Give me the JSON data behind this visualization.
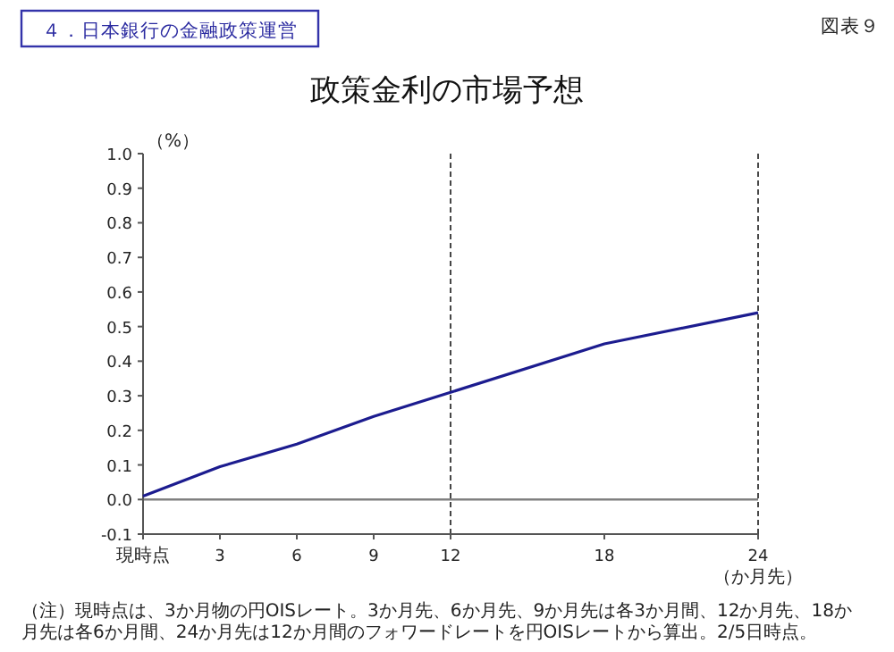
{
  "chart_data": {
    "type": "line",
    "title": "政策金利の市場予想",
    "xlabel": "（か月先）",
    "ylabel": "（%）",
    "annotations": [
      "４．日本銀行の金融政策運営",
      "図表９",
      "（注）現時点は、3か月物の円OISレート。3か月先、6か月先、9か月先は各3か月間、12か月先、18か月先は各6か月間、24か月先は12か月間のフォワードレートを円OISレートから算出。2/5日時点。"
    ],
    "x": [
      0,
      3,
      6,
      9,
      12,
      18,
      24
    ],
    "series": [
      {
        "color": "#1c1c8f",
        "values": [
          0.01,
          0.095,
          0.16,
          0.24,
          0.31,
          0.45,
          0.54
        ]
      }
    ],
    "xlim": [
      0,
      24
    ],
    "xticks": [
      {
        "value": 0,
        "label": "現時点"
      },
      3,
      6,
      9,
      12,
      18,
      24
    ],
    "ylim": [
      -0.1,
      1.0
    ],
    "yticks": [
      {
        "value": -0.1,
        "label": "-0.1"
      },
      {
        "value": 0,
        "label": "0.0"
      },
      {
        "value": 0.1,
        "label": "0.1"
      },
      {
        "value": 0.2,
        "label": "0.2"
      },
      {
        "value": 0.3,
        "label": "0.3"
      },
      {
        "value": 0.4,
        "label": "0.4"
      },
      {
        "value": 0.5,
        "label": "0.5"
      },
      {
        "value": 0.6,
        "label": "0.6"
      },
      {
        "value": 0.7,
        "label": "0.7"
      },
      {
        "value": 0.8,
        "label": "0.8"
      },
      {
        "value": 0.9,
        "label": "0.9"
      },
      {
        "value": 1.0,
        "label": "1.0"
      }
    ],
    "ref_lines": [
      {
        "axis": "x",
        "value": 12,
        "line_style": "dashed",
        "color": "#333333"
      },
      {
        "axis": "x",
        "value": 24,
        "line_style": "dashed",
        "color": "#333333"
      },
      {
        "axis": "y",
        "value": 0,
        "line_style": "solid",
        "color": "#808080"
      }
    ],
    "grid": false,
    "marker": "none",
    "line_style": "solid"
  }
}
